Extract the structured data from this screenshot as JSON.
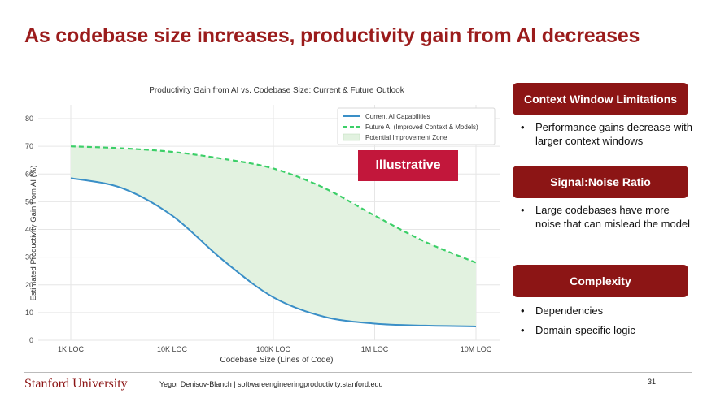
{
  "slide": {
    "title": "As codebase size increases, productivity gain from AI decreases",
    "badge": "Illustrative",
    "sections": [
      {
        "header": "Context Window Limitations",
        "bullets": [
          "Performance gains decrease with larger context windows"
        ]
      },
      {
        "header": "Signal:Noise Ratio",
        "bullets": [
          "Large codebases have more noise that can mislead the model"
        ]
      },
      {
        "header": "Complexity",
        "bullets": [
          "Dependencies",
          "Domain-specific logic"
        ]
      }
    ],
    "footer": {
      "logo": "Stanford University",
      "text": "Yegor Denisov-Blanch | softwareengineeringproductivity.stanford.edu",
      "page": "31"
    }
  },
  "colors": {
    "title": "#9b1c1c",
    "card": "#8c1515",
    "badge": "#c2173b",
    "current": "#3a8fc7",
    "future": "#3ccf68",
    "zone": "#e2f2e0"
  },
  "chart_data": {
    "type": "line",
    "title": "Productivity Gain from AI vs. Codebase Size: Current & Future Outlook",
    "xlabel": "Codebase Size (Lines of Code)",
    "ylabel": "Estimated Productivity Gain from AI (%)",
    "x_scale": "log",
    "x_ticks": [
      "1K LOC",
      "10K LOC",
      "100K LOC",
      "1M LOC",
      "10M LOC"
    ],
    "xlim": [
      "1K LOC",
      "10M LOC"
    ],
    "ylim": [
      0,
      85
    ],
    "y_ticks": [
      0,
      10,
      20,
      30,
      40,
      50,
      60,
      70,
      80
    ],
    "grid": true,
    "legend_position": "top-right",
    "series": [
      {
        "name": "Current AI Capabilities",
        "style": "solid",
        "x": [
          "1K LOC",
          "3.16K LOC",
          "10K LOC",
          "31.6K LOC",
          "100K LOC",
          "316K LOC",
          "1M LOC",
          "3.16M LOC",
          "10M LOC"
        ],
        "y": [
          58.5,
          55,
          45,
          29,
          15.5,
          8.5,
          6,
          5.3,
          5
        ]
      },
      {
        "name": "Future AI (Improved Context & Models)",
        "style": "dashed",
        "x": [
          "1K LOC",
          "3.16K LOC",
          "10K LOC",
          "31.6K LOC",
          "100K LOC",
          "316K LOC",
          "1M LOC",
          "3.16M LOC",
          "10M LOC"
        ],
        "y": [
          70,
          69.3,
          68,
          65.5,
          62,
          55,
          45,
          35.5,
          28
        ]
      }
    ],
    "fill_between": {
      "name": "Potential Improvement Zone",
      "between": [
        "Current AI Capabilities",
        "Future AI (Improved Context & Models)"
      ]
    }
  }
}
